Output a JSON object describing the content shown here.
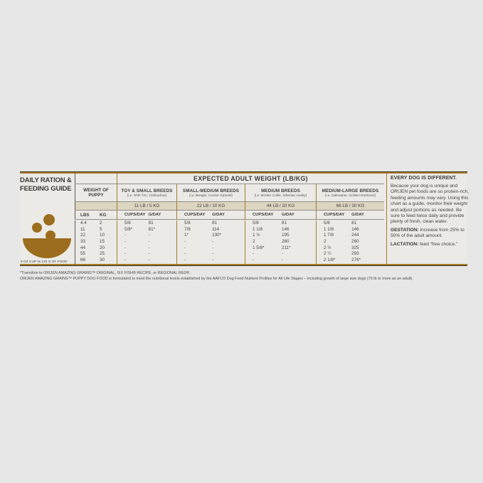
{
  "colors": {
    "page_bg": "#e7e7e7",
    "gold_rule": "#a87b28",
    "dark_rule": "#38301e",
    "band_bg": "#dcd6c1",
    "bowl_brown": "#9c6d1e",
    "text": "#3d3c3a"
  },
  "left_panel": {
    "title_line1": "DAILY RATION &",
    "title_line2": "FEEDING GUIDE",
    "bowl_icon": "bowl-with-kibble-icon",
    "cup_note": "8 OZ CUP IS 130 G OF FOOD"
  },
  "table": {
    "title": "EXPECTED ADULT WEIGHT (LB/KG)",
    "weight_header": {
      "line1": "WEIGHT OF",
      "line2": "PUPPY",
      "lbs": "LBS",
      "kg": "KG"
    },
    "units": {
      "cups": "CUPS/DAY",
      "g": "G/DAY"
    },
    "columns": [
      {
        "name": "TOY & SMALL BREEDS",
        "examples": "(i.e. Shih Tzu, Chihuahua)",
        "limit": "11 LB / 5 KG"
      },
      {
        "name": "SMALL-MEDIUM BREEDS",
        "examples": "(i.e. Beagle, Cocker Spaniel)",
        "limit": "22 LB / 10 KG"
      },
      {
        "name": "MEDIUM BREEDS",
        "examples": "(i.e. Border Collie, Siberian Husky)",
        "limit": "44 LB / 20 KG"
      },
      {
        "name": "MEDIUM-LARGE BREEDS",
        "examples": "(i.e. Dalmatian, Golden Retriever)",
        "limit": "66 LB / 30 KG"
      }
    ],
    "rows": [
      {
        "lbs": "4.4",
        "kg": "2",
        "cells": [
          [
            "5/8",
            "81"
          ],
          [
            "5/8",
            "81"
          ],
          [
            "5/8",
            "81"
          ],
          [
            "5/8",
            "81"
          ]
        ]
      },
      {
        "lbs": "11",
        "kg": "5",
        "cells": [
          [
            "5/8*",
            "81*"
          ],
          [
            "7/8",
            "114"
          ],
          [
            "1 1/8",
            "146"
          ],
          [
            "1 1/8",
            "146"
          ]
        ]
      },
      {
        "lbs": "22",
        "kg": "10",
        "cells": [
          [
            "-",
            "-"
          ],
          [
            "1*",
            "130*"
          ],
          [
            "1 ½",
            "195"
          ],
          [
            "1 7/8",
            "244"
          ]
        ]
      },
      {
        "lbs": "33",
        "kg": "15",
        "cells": [
          [
            "-",
            "-"
          ],
          [
            "-",
            "-"
          ],
          [
            "2",
            "260"
          ],
          [
            "2",
            "260"
          ]
        ]
      },
      {
        "lbs": "44",
        "kg": "20",
        "cells": [
          [
            "-",
            "-"
          ],
          [
            "-",
            "-"
          ],
          [
            "1 5/8*",
            "211*"
          ],
          [
            "2 ½",
            "325"
          ]
        ]
      },
      {
        "lbs": "55",
        "kg": "25",
        "cells": [
          [
            "-",
            "-"
          ],
          [
            "-",
            "-"
          ],
          [
            "-",
            "-"
          ],
          [
            "2 ¼",
            "293"
          ]
        ]
      },
      {
        "lbs": "66",
        "kg": "30",
        "cells": [
          [
            "-",
            "-"
          ],
          [
            "-",
            "-"
          ],
          [
            "-",
            "-"
          ],
          [
            "2 1/8*",
            "276*"
          ]
        ]
      }
    ]
  },
  "side_note": {
    "title": "EVERY DOG IS DIFFERENT.",
    "body": "Because your dog is unique and ORIJEN pet foods are so protein-rich, feeding amounts may vary. Using this chart as a guide, monitor their weight and adjust portions as needed. Be sure to feed twice daily and provide plenty of fresh, clean water.",
    "gestation_label": "GESTATION:",
    "gestation_text": " increase from 25% to 50% of the adult amount.",
    "lactation_label": "LACTATION:",
    "lactation_text": " feed “free choice.”"
  },
  "footnotes": [
    "*Transition to ORIJEN AMAZING GRAINS™ ORIGINAL, SIX FISH® RECIPE, or REGIONAL RED®.",
    "ORIJEN AMAZING GRAINS™ PUPPY DOG FOOD is formulated to meet the nutritional levels established by the AAFCO Dog Food Nutrient Profiles for All Life Stages – including growth of large size dogs (70 lb or more as an adult)."
  ]
}
